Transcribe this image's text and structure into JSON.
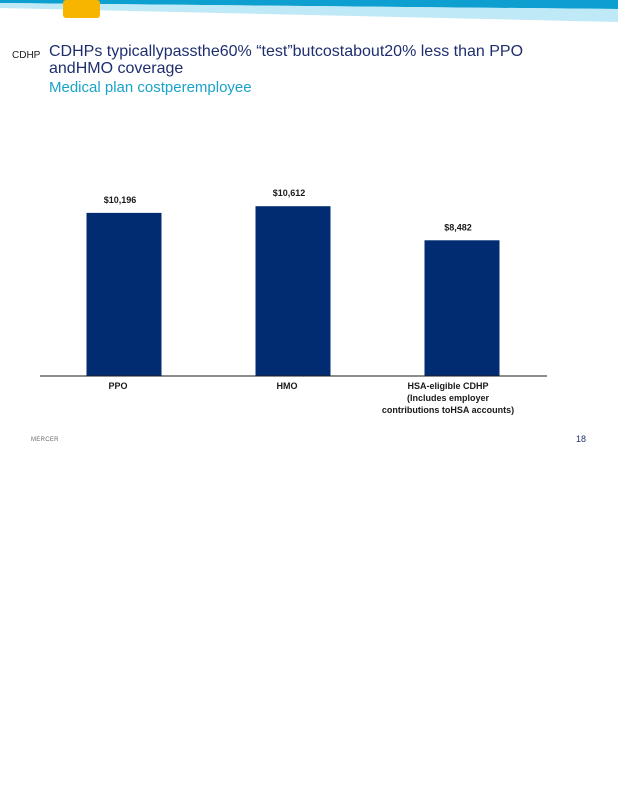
{
  "slide": {
    "section_tag": "CDHP",
    "title": "CDHPs typicallypassthe60%  “test”butcostabout20%  less than PPO andHMO  coverage",
    "subtitle": "Medical plan costperemployee",
    "footer_brand": "MERCER",
    "page_number": "18"
  },
  "colors": {
    "bar": "#022c71",
    "title": "#1f2f6e",
    "subtitle": "#1aa3c8",
    "band_dark": "#0d9fcf",
    "band_light": "#bfe9f6",
    "logo_tab": "#f7b500"
  },
  "chart_data": {
    "type": "bar",
    "title": "",
    "xlabel": "",
    "ylabel": "",
    "ylim": [
      0,
      12000
    ],
    "grid": false,
    "categories": [
      [
        "PPO"
      ],
      [
        "HMO"
      ],
      [
        "HSA-eligible            CDHP",
        "(Includes            employer",
        "contributions              toHSA         accounts)"
      ]
    ],
    "values": [
      10196,
      10612,
      8482
    ],
    "value_labels": [
      "$10,196",
      "$10,612",
      "$8,482"
    ]
  }
}
